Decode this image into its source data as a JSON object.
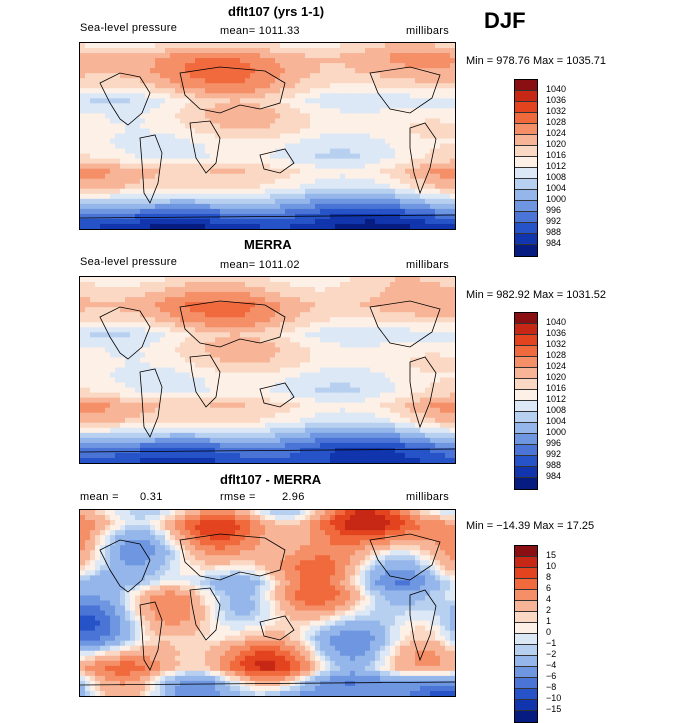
{
  "season": "DJF",
  "scale_fill": {
    "abs": [
      "#8a0f12",
      "#c62815",
      "#e3441f",
      "#f06a3d",
      "#f48f67",
      "#f7b497",
      "#fad8c3",
      "#fdf0e6",
      "#dde8f6",
      "#b8d0f0",
      "#94b6ea",
      "#6f97e1",
      "#4a75d6",
      "#2654c8",
      "#1035ac",
      "#061c80"
    ],
    "diff": [
      "#8a0f12",
      "#c62815",
      "#e3441f",
      "#f06a3d",
      "#f48f67",
      "#f7b497",
      "#fad8c3",
      "#fdf0e6",
      "#dde8f6",
      "#b8d0f0",
      "#94b6ea",
      "#6f97e1",
      "#4a75d6",
      "#2654c8",
      "#1035ac",
      "#061c80"
    ]
  },
  "panels": [
    {
      "title": "dflt107 (yrs 1-1)",
      "variable": "Sea-level pressure",
      "mean_text": "mean= 1011.33",
      "units": "millibars",
      "minmax": "Min = 978.76 Max = 1035.71",
      "levels": [
        "1040",
        "1036",
        "1032",
        "1028",
        "1024",
        "1020",
        "1016",
        "1012",
        "1008",
        "1004",
        "1000",
        "996",
        "992",
        "988",
        "984"
      ]
    },
    {
      "title": "MERRA",
      "variable": "Sea-level pressure",
      "mean_text": "mean= 1011.02",
      "units": "millibars",
      "minmax": "Min = 982.92 Max = 1031.52",
      "levels": [
        "1040",
        "1036",
        "1032",
        "1028",
        "1024",
        "1020",
        "1016",
        "1012",
        "1008",
        "1004",
        "1000",
        "996",
        "992",
        "988",
        "984"
      ]
    },
    {
      "title": "dflt107 - MERRA",
      "mean_label": "mean =",
      "mean_value": "0.31",
      "rmse_label": "rmse =",
      "rmse_value": "2.96",
      "units": "millibars",
      "minmax": "Min = −14.39 Max =  17.25",
      "levels": [
        "15",
        "10",
        "8",
        "6",
        "4",
        "2",
        "1",
        "0",
        "−1",
        "−2",
        "−4",
        "−6",
        "−8",
        "−10",
        "−15"
      ]
    }
  ],
  "chart_data": [
    {
      "type": "heatmap",
      "title": "dflt107 (yrs 1-1)",
      "subtitle": "Sea-level pressure",
      "units": "millibars",
      "mean": 1011.33,
      "min": 978.76,
      "max": 1035.71,
      "levels": [
        984,
        988,
        992,
        996,
        1000,
        1004,
        1008,
        1012,
        1016,
        1020,
        1024,
        1028,
        1032,
        1036,
        1040
      ],
      "zonal_profile_south_to_north": [
        984,
        992,
        1004,
        1016,
        1020,
        1012,
        1012,
        1016,
        1016,
        1012,
        1020,
        1024,
        1024,
        1016
      ]
    },
    {
      "type": "heatmap",
      "title": "MERRA",
      "subtitle": "Sea-level pressure",
      "units": "millibars",
      "mean": 1011.02,
      "min": 982.92,
      "max": 1031.52,
      "levels": [
        984,
        988,
        992,
        996,
        1000,
        1004,
        1008,
        1012,
        1016,
        1020,
        1024,
        1028,
        1032,
        1036,
        1040
      ],
      "zonal_profile_south_to_north": [
        988,
        992,
        1004,
        1016,
        1020,
        1012,
        1012,
        1016,
        1016,
        1012,
        1020,
        1024,
        1020,
        1016
      ]
    },
    {
      "type": "heatmap",
      "title": "dflt107 - MERRA",
      "units": "millibars",
      "mean": 0.31,
      "rmse": 2.96,
      "min": -14.39,
      "max": 17.25,
      "levels": [
        -15,
        -10,
        -8,
        -6,
        -4,
        -2,
        -1,
        0,
        1,
        2,
        4,
        6,
        8,
        10,
        15
      ],
      "zonal_profile_south_to_north": [
        -4,
        -2,
        4,
        2,
        -1,
        -1,
        0,
        1,
        -1,
        1,
        2,
        4,
        6,
        2
      ]
    }
  ]
}
